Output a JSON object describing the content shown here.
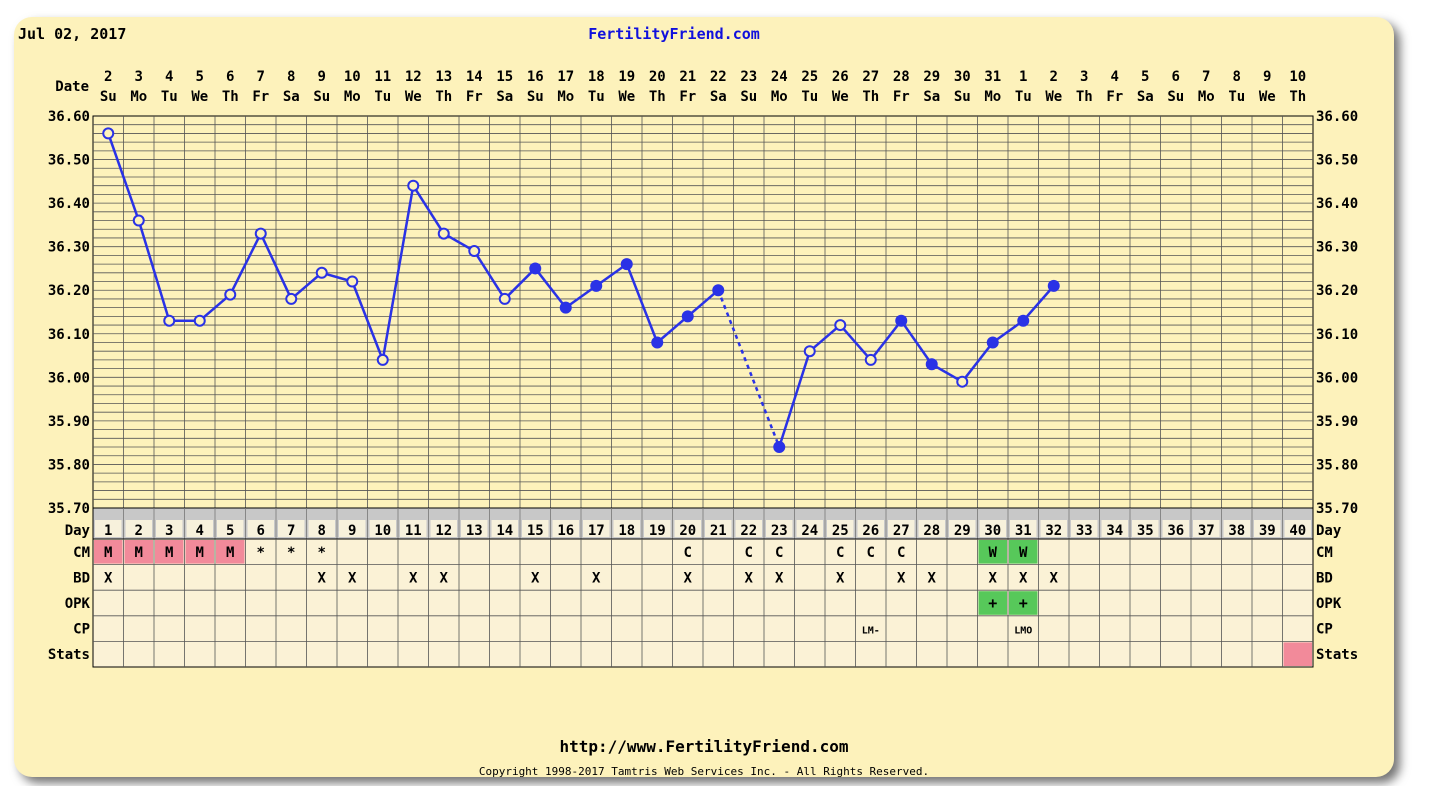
{
  "header": {
    "date": "Jul 02, 2017",
    "site": "FertilityFriend.com"
  },
  "footer": {
    "url": "http://www.FertilityFriend.com",
    "copyright": "Copyright 1998-2017 Tamtris Web Services Inc. - All Rights Reserved."
  },
  "colors": {
    "background": "#fdf2bb",
    "line": "#2a32e6",
    "grid": "#555555",
    "menstruation": "#f28a9a",
    "fertile_green": "#57c85a",
    "gray_band": "#c8c8c8",
    "row_bg": "#fbf2d6"
  },
  "chart_data": {
    "type": "line",
    "row_labels": {
      "date": "Date",
      "day": "Day",
      "rows": [
        "CM",
        "BD",
        "OPK",
        "CP",
        "Stats"
      ]
    },
    "dates": [
      2,
      3,
      4,
      5,
      6,
      7,
      8,
      9,
      10,
      11,
      12,
      13,
      14,
      15,
      16,
      17,
      18,
      19,
      20,
      21,
      22,
      23,
      24,
      25,
      26,
      27,
      28,
      29,
      30,
      31,
      1,
      2,
      3,
      4,
      5,
      6,
      7,
      8,
      9,
      10
    ],
    "weekdays": [
      "Su",
      "Mo",
      "Tu",
      "We",
      "Th",
      "Fr",
      "Sa",
      "Su",
      "Mo",
      "Tu",
      "We",
      "Th",
      "Fr",
      "Sa",
      "Su",
      "Mo",
      "Tu",
      "We",
      "Th",
      "Fr",
      "Sa",
      "Su",
      "Mo",
      "Tu",
      "We",
      "Th",
      "Fr",
      "Sa",
      "Su",
      "Mo",
      "Tu",
      "We",
      "Th",
      "Fr",
      "Sa",
      "Su",
      "Mo",
      "Tu",
      "We",
      "Th"
    ],
    "cycle_days": [
      1,
      2,
      3,
      4,
      5,
      6,
      7,
      8,
      9,
      10,
      11,
      12,
      13,
      14,
      15,
      16,
      17,
      18,
      19,
      20,
      21,
      22,
      23,
      24,
      25,
      26,
      27,
      28,
      29,
      30,
      31,
      32,
      33,
      34,
      35,
      36,
      37,
      38,
      39,
      40
    ],
    "ylim": [
      35.7,
      36.6
    ],
    "yticks": [
      "36.60",
      "36.50",
      "36.40",
      "36.30",
      "36.20",
      "36.10",
      "36.00",
      "35.90",
      "35.80",
      "35.70"
    ],
    "temperatures": [
      {
        "day": 1,
        "temp": 36.56,
        "open": true
      },
      {
        "day": 2,
        "temp": 36.36,
        "open": true
      },
      {
        "day": 3,
        "temp": 36.13,
        "open": true
      },
      {
        "day": 4,
        "temp": 36.13,
        "open": true
      },
      {
        "day": 5,
        "temp": 36.19,
        "open": true
      },
      {
        "day": 6,
        "temp": 36.33,
        "open": true
      },
      {
        "day": 7,
        "temp": 36.18,
        "open": true
      },
      {
        "day": 8,
        "temp": 36.24,
        "open": true
      },
      {
        "day": 9,
        "temp": 36.22,
        "open": true
      },
      {
        "day": 10,
        "temp": 36.04,
        "open": true
      },
      {
        "day": 11,
        "temp": 36.44,
        "open": true
      },
      {
        "day": 12,
        "temp": 36.33,
        "open": true
      },
      {
        "day": 13,
        "temp": 36.29,
        "open": true
      },
      {
        "day": 14,
        "temp": 36.18,
        "open": true
      },
      {
        "day": 15,
        "temp": 36.25,
        "open": false
      },
      {
        "day": 16,
        "temp": 36.16,
        "open": false
      },
      {
        "day": 17,
        "temp": 36.21,
        "open": false
      },
      {
        "day": 18,
        "temp": 36.26,
        "open": false
      },
      {
        "day": 19,
        "temp": 36.08,
        "open": false
      },
      {
        "day": 20,
        "temp": 36.14,
        "open": false
      },
      {
        "day": 21,
        "temp": 36.2,
        "open": false
      },
      {
        "day": 23,
        "temp": 35.84,
        "open": false
      },
      {
        "day": 24,
        "temp": 36.06,
        "open": true
      },
      {
        "day": 25,
        "temp": 36.12,
        "open": true
      },
      {
        "day": 26,
        "temp": 36.04,
        "open": true
      },
      {
        "day": 27,
        "temp": 36.13,
        "open": false
      },
      {
        "day": 28,
        "temp": 36.03,
        "open": false
      },
      {
        "day": 29,
        "temp": 35.99,
        "open": true
      },
      {
        "day": 30,
        "temp": 36.08,
        "open": false
      },
      {
        "day": 31,
        "temp": 36.13,
        "open": false
      },
      {
        "day": 32,
        "temp": 36.21,
        "open": false
      }
    ],
    "dashed_segments": [
      [
        21,
        23
      ]
    ],
    "cm": [
      {
        "day": 1,
        "value": "M",
        "color": "pink"
      },
      {
        "day": 2,
        "value": "M",
        "color": "pink"
      },
      {
        "day": 3,
        "value": "M",
        "color": "pink"
      },
      {
        "day": 4,
        "value": "M",
        "color": "pink"
      },
      {
        "day": 5,
        "value": "M",
        "color": "pink"
      },
      {
        "day": 6,
        "value": "*"
      },
      {
        "day": 7,
        "value": "*"
      },
      {
        "day": 8,
        "value": "*"
      },
      {
        "day": 20,
        "value": "C"
      },
      {
        "day": 22,
        "value": "C"
      },
      {
        "day": 23,
        "value": "C"
      },
      {
        "day": 25,
        "value": "C"
      },
      {
        "day": 26,
        "value": "C"
      },
      {
        "day": 27,
        "value": "C"
      },
      {
        "day": 30,
        "value": "W",
        "color": "green"
      },
      {
        "day": 31,
        "value": "W",
        "color": "green"
      }
    ],
    "bd": [
      1,
      8,
      9,
      11,
      12,
      15,
      17,
      20,
      22,
      23,
      25,
      27,
      28,
      30,
      31,
      32
    ],
    "bd_mark": "X",
    "opk": [
      {
        "day": 30,
        "value": "+"
      },
      {
        "day": 31,
        "value": "+"
      }
    ],
    "cp": [
      {
        "day": 26,
        "value": "LM-"
      },
      {
        "day": 31,
        "value": "LMO"
      }
    ],
    "stats": [
      {
        "day": 40,
        "color": "pink"
      }
    ]
  }
}
